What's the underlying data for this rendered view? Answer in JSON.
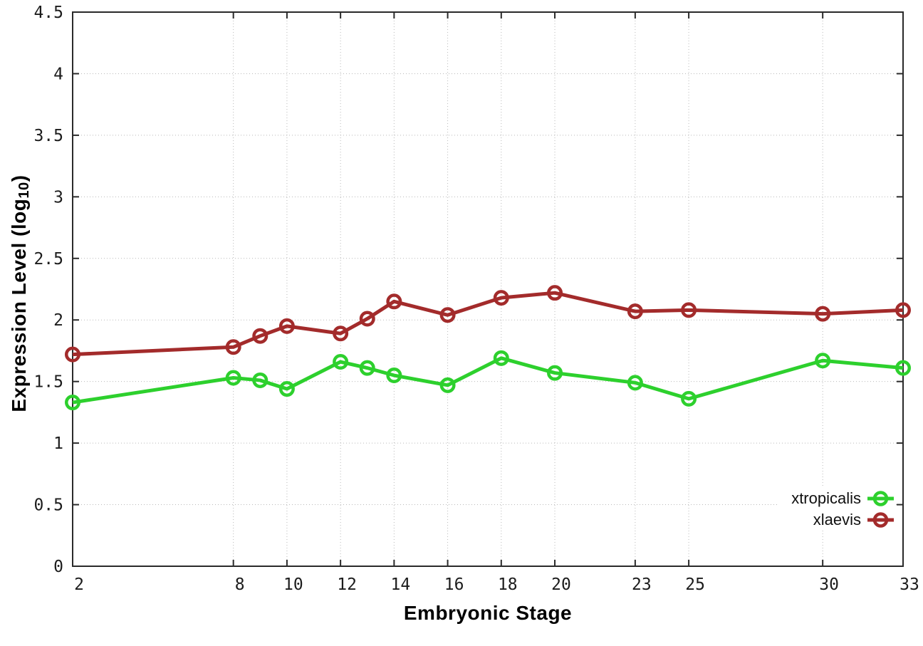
{
  "chart_data": {
    "type": "line",
    "title": "",
    "xlabel": "Embryonic Stage",
    "ylabel": "Expression Level (log10)",
    "ylabel_parts": {
      "prefix": "Expression Level (log",
      "subscript": "10",
      "suffix": ")"
    },
    "xlim": [
      2,
      33
    ],
    "ylim": [
      0,
      4.5
    ],
    "x_ticks": [
      2,
      8,
      10,
      12,
      14,
      16,
      18,
      20,
      23,
      25,
      30,
      33
    ],
    "y_ticks": [
      0,
      0.5,
      1,
      1.5,
      2,
      2.5,
      3,
      3.5,
      4,
      4.5
    ],
    "grid": "dotted",
    "legend_position": "inside-bottom-right",
    "background_color": "#ffffff",
    "axis_color": "#2a2a2a",
    "grid_color": "#b9b9b9",
    "marker": "open-circle",
    "series": [
      {
        "name": "xtropicalis",
        "color": "#2dd02d",
        "x": [
          2,
          8,
          9,
          10,
          12,
          13,
          14,
          16,
          18,
          20,
          23,
          25,
          30,
          33
        ],
        "y": [
          1.33,
          1.53,
          1.51,
          1.44,
          1.66,
          1.61,
          1.55,
          1.47,
          1.69,
          1.57,
          1.49,
          1.36,
          1.67,
          1.61
        ]
      },
      {
        "name": "xlaevis",
        "color": "#a32b2b",
        "x": [
          2,
          8,
          9,
          10,
          12,
          13,
          14,
          16,
          18,
          20,
          23,
          25,
          30,
          33
        ],
        "y": [
          1.72,
          1.78,
          1.87,
          1.95,
          1.89,
          2.01,
          2.15,
          2.04,
          2.18,
          2.22,
          2.07,
          2.08,
          2.05,
          2.08
        ]
      }
    ]
  }
}
